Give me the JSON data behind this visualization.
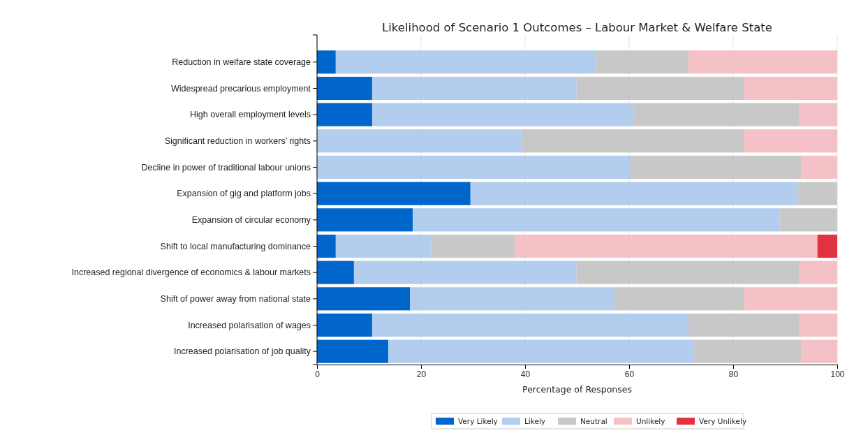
{
  "chart_data": {
    "type": "bar",
    "orientation": "horizontal",
    "stacked": true,
    "title": "Likelihood of Scenario 1 Outcomes – Labour Market & Welfare State",
    "xlabel": "Percentage of Responses",
    "categories": [
      "Reduction in welfare state coverage",
      "Widespread precarious employment",
      "High overall employment levels",
      "Significant reduction in workers’ rights",
      "Decline in power of traditional labour unions",
      "Expansion of gig and platform jobs",
      "Expansion of circular economy",
      "Shift to local manufacturing dominance",
      "Increased regional divergence of economics & labour markets",
      "Shift of power away from national state",
      "Increased polarisation of wages",
      "Increased polarisation of job quality"
    ],
    "series": [
      {
        "name": "Very Likely",
        "color": "#0066cc",
        "values": [
          3.6,
          10.6,
          10.6,
          0,
          0,
          29.5,
          18.4,
          3.6,
          7.1,
          17.9,
          10.6,
          13.7
        ]
      },
      {
        "name": "Likely",
        "color": "#b3cdef",
        "values": [
          50.0,
          39.3,
          50.1,
          39.3,
          60.0,
          63.0,
          70.5,
          18.5,
          42.8,
          39.3,
          60.8,
          58.8
        ]
      },
      {
        "name": "Neutral",
        "color": "#c8c8c8",
        "values": [
          17.8,
          32.2,
          32.1,
          42.8,
          33.2,
          7.5,
          11.1,
          15.9,
          42.9,
          24.9,
          21.4,
          20.7
        ]
      },
      {
        "name": "Unlikely",
        "color": "#f4c2c6",
        "values": [
          28.6,
          17.9,
          7.2,
          17.9,
          6.8,
          0,
          0,
          58.2,
          7.2,
          17.9,
          7.2,
          6.8
        ]
      },
      {
        "name": "Very Unlikely",
        "color": "#e0333f",
        "values": [
          0,
          0,
          0,
          0,
          0,
          0,
          0,
          3.8,
          0,
          0,
          0,
          0
        ]
      }
    ],
    "xlim": [
      0,
      100
    ],
    "xticks": [
      0,
      20,
      40,
      60,
      80,
      100
    ],
    "grid": "x",
    "legend": "bottom"
  }
}
